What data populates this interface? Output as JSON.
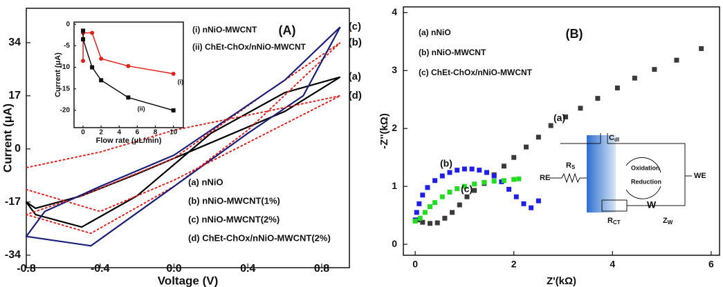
{
  "chart_data": [
    {
      "type": "line",
      "panel": "(A)",
      "xlabel": "Voltage (V)",
      "ylabel": "Current (μA)",
      "xlim": [
        -0.8,
        0.95
      ],
      "ylim": [
        -38,
        45
      ],
      "xticks": [
        -0.8,
        -0.4,
        {
          "value": 0,
          "label": "0.0"
        },
        0.4,
        0.8
      ],
      "yticks": [
        34,
        17,
        0,
        -17,
        -34
      ],
      "series": [
        {
          "name": "(a) nNiO",
          "label": "(a)",
          "color": "#000000",
          "linestyle": "solid",
          "x": [
            -0.8,
            -0.75,
            -0.5,
            -0.2,
            0.2,
            0.6,
            0.9,
            0.6,
            0.2,
            -0.2,
            -0.5,
            -0.75,
            -0.8
          ],
          "values": [
            -17,
            -21,
            -25,
            -15,
            5,
            18,
            23,
            12,
            2,
            -8,
            -15,
            -19,
            -17
          ]
        },
        {
          "name": "(b) nNiO-MWCNT(1%)",
          "label": "(b)",
          "color": "#e0201c",
          "linestyle": "dotted",
          "x": [
            -0.8,
            -0.45,
            0,
            0.4,
            0.9,
            0.5,
            0,
            -0.5,
            -0.8
          ],
          "values": [
            -21,
            -27,
            -12,
            6,
            34,
            18,
            -3,
            -15,
            -21
          ]
        },
        {
          "name": "(c) nNiO-MWCNT(2%)",
          "label": "(c)",
          "color": "#1a1f7a",
          "linestyle": "solid",
          "x": [
            -0.8,
            -0.45,
            0,
            0.4,
            0.7,
            0.9,
            0.6,
            0.3,
            0,
            -0.4,
            -0.7,
            -0.8
          ],
          "values": [
            -28,
            -31,
            -12,
            5,
            17,
            39,
            22,
            10,
            -2,
            -12,
            -20,
            -28
          ]
        },
        {
          "name": "(d) ChEt-ChOx/nNiO-MWCNT(2%)",
          "label": "(d)",
          "color": "#e0201c",
          "linestyle": "dotted",
          "x": [
            -0.8,
            -0.4,
            0,
            0.5,
            0.9,
            0.5,
            0,
            -0.4,
            -0.8
          ],
          "values": [
            -13,
            -20,
            -10,
            5,
            17,
            12,
            6,
            -1,
            -6
          ]
        }
      ]
    },
    {
      "type": "line",
      "xlabel": "Flow rate (μL/min)",
      "ylabel": "Current (μA)",
      "xlim": [
        -1,
        11.1
      ],
      "ylim": [
        -24,
        0.5
      ],
      "xticks": [
        0,
        2,
        4,
        6,
        8,
        10
      ],
      "yticks": [
        0,
        -5,
        -10,
        -15,
        -20
      ],
      "series": [
        {
          "name": "(i) nNiO-MWCNT",
          "label": "(i)",
          "color": "#e0201c",
          "linestyle": "solid",
          "x": [
            0,
            0,
            1,
            2,
            5,
            10
          ],
          "values": [
            -8.5,
            -2,
            -2,
            -8,
            -9.7,
            -11.5
          ]
        },
        {
          "name": "(ii) ChEt-ChOx/nNiO-MWCNT",
          "label": "(ii)",
          "color": "#111111",
          "linestyle": "solid",
          "x": [
            0,
            0,
            1,
            2,
            5,
            10
          ],
          "values": [
            -1.5,
            -3.5,
            -10,
            -13,
            -17,
            -20
          ]
        }
      ]
    },
    {
      "type": "scatter",
      "panel": "(B)",
      "xlabel": "Z'(kΩ)",
      "ylabel": "-Z''(kΩ)",
      "xlim": [
        -0.24,
        6.17
      ],
      "ylim": [
        -0.19,
        4.1
      ],
      "xticks": [
        0,
        2,
        4,
        6
      ],
      "yticks": [
        0,
        1,
        2,
        3,
        4
      ],
      "series": [
        {
          "name": "(a) nNiO",
          "label": "(a)",
          "color": "#3a3a3a",
          "x": [
            0.05,
            0.15,
            0.3,
            0.45,
            0.6,
            0.75,
            0.9,
            1.05,
            1.2,
            1.4,
            1.6,
            1.8,
            2.0,
            2.25,
            2.5,
            2.75,
            3.05,
            3.35,
            3.7,
            4.1,
            4.45,
            4.85,
            5.3,
            5.8
          ],
          "values": [
            0.42,
            0.38,
            0.36,
            0.37,
            0.45,
            0.55,
            0.68,
            0.82,
            0.93,
            1.05,
            1.2,
            1.35,
            1.5,
            1.68,
            1.85,
            2.05,
            2.2,
            2.35,
            2.52,
            2.7,
            2.87,
            3.02,
            3.18,
            3.38
          ]
        },
        {
          "name": "(b) nNiO-MWCNT",
          "label": "(b)",
          "color": "#1f1fe6",
          "x": [
            0,
            0.03,
            0.08,
            0.15,
            0.25,
            0.4,
            0.55,
            0.7,
            0.85,
            1.0,
            1.15,
            1.3,
            1.45,
            1.6,
            1.75,
            1.9,
            2.05,
            2.2,
            2.35,
            2.5
          ],
          "values": [
            0.42,
            0.55,
            0.7,
            0.85,
            0.98,
            1.1,
            1.18,
            1.24,
            1.28,
            1.3,
            1.3,
            1.28,
            1.24,
            1.18,
            1.08,
            0.95,
            0.82,
            0.7,
            0.63,
            0.75
          ]
        },
        {
          "name": "(c) ChEt-ChOx/nNiO-MWCNT",
          "label": "(c)",
          "color": "#22dd22",
          "x": [
            0,
            0.1,
            0.2,
            0.3,
            0.4,
            0.55,
            0.7,
            0.85,
            1.0,
            1.2,
            1.4,
            1.6,
            1.8,
            2.0,
            2.1
          ],
          "values": [
            0.4,
            0.45,
            0.55,
            0.65,
            0.72,
            0.82,
            0.9,
            0.96,
            1.0,
            1.04,
            1.07,
            1.09,
            1.1,
            1.12,
            1.13
          ]
        }
      ],
      "circuit": {
        "re": "RE",
        "we": "WE",
        "rs": {
          "main": "R",
          "sub": "S"
        },
        "cdl": {
          "main": "C",
          "sub": "dl"
        },
        "rct": {
          "main": "R",
          "sub": "CT"
        },
        "zw": {
          "main": "Z",
          "sub": "W"
        },
        "w": "W",
        "oxidation": "Oxidation",
        "reduction": "Reduction"
      }
    }
  ]
}
